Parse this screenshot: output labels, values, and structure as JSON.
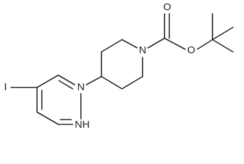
{
  "atoms": [
    {
      "label": "I"
    },
    {
      "label": "N"
    },
    {
      "label": "NH"
    },
    {
      "label": "N"
    },
    {
      "label": "O"
    },
    {
      "label": "O"
    }
  ]
}
